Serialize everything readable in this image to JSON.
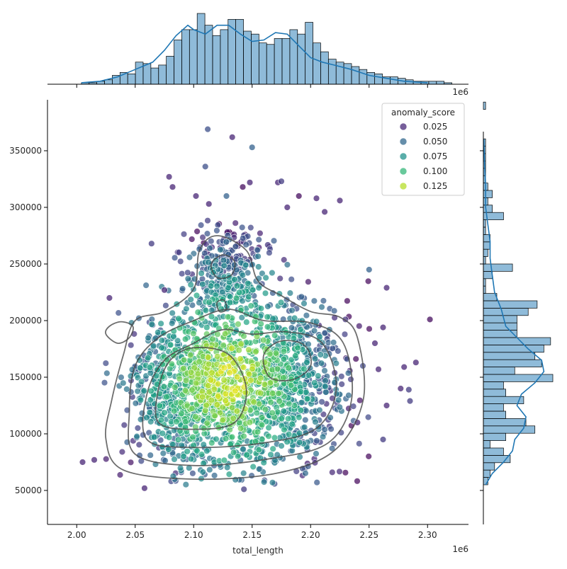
{
  "chart_data": {
    "type": "scatter",
    "title": "",
    "xlabel": "total_length",
    "ylabel": "",
    "x_offset_label": "1e6",
    "top_offset_label": "1e6",
    "xlim": [
      1.975,
      2.335
    ],
    "ylim": [
      20000,
      395000
    ],
    "x_ticks": [
      2.0,
      2.05,
      2.1,
      2.15,
      2.2,
      2.25,
      2.3
    ],
    "x_tick_labels": [
      "2.00",
      "2.05",
      "2.10",
      "2.15",
      "2.20",
      "2.25",
      "2.30"
    ],
    "y_ticks": [
      50000,
      100000,
      150000,
      200000,
      250000,
      300000,
      350000
    ],
    "y_tick_labels": [
      "50000",
      "100000",
      "150000",
      "200000",
      "250000",
      "300000",
      "350000"
    ],
    "grid": false,
    "legend": {
      "title": "anomaly_score",
      "placement": "top-right",
      "entries": [
        {
          "label": "0.025",
          "color": "#482878"
        },
        {
          "label": "0.050",
          "color": "#31688e"
        },
        {
          "label": "0.075",
          "color": "#21918c"
        },
        {
          "label": "0.100",
          "color": "#35b779"
        },
        {
          "label": "0.125",
          "color": "#b5de2b"
        }
      ]
    },
    "marginal_x": {
      "type": "histogram_with_kde",
      "color": "#1f77b4",
      "bin_start": 2.004,
      "bin_width": 0.0066,
      "counts": [
        1,
        1,
        2,
        3,
        6,
        8,
        7,
        15,
        14,
        11,
        13,
        19,
        30,
        37,
        37,
        48,
        40,
        33,
        37,
        44,
        44,
        36,
        34,
        28,
        27,
        31,
        31,
        37,
        34,
        42,
        28,
        22,
        17,
        15,
        14,
        12,
        10,
        8,
        7,
        5,
        5,
        4,
        3,
        2,
        2,
        2,
        2,
        1
      ],
      "kde_x": [
        2.004,
        2.02,
        2.035,
        2.05,
        2.065,
        2.075,
        2.085,
        2.095,
        2.1,
        2.11,
        2.12,
        2.13,
        2.14,
        2.15,
        2.16,
        2.17,
        2.18,
        2.19,
        2.2,
        2.21,
        2.22,
        2.235,
        2.25,
        2.265,
        2.28,
        2.3
      ],
      "kde_y": [
        1,
        2,
        5,
        10,
        15,
        23,
        33,
        40,
        37,
        34,
        40,
        40,
        34,
        29,
        30,
        35,
        34,
        26,
        18,
        15,
        13,
        10,
        6,
        4,
        2,
        1
      ]
    },
    "marginal_y": {
      "type": "histogram_with_kde",
      "color": "#1f77b4",
      "bin_start": 55000,
      "bin_width": 6500,
      "counts": [
        2,
        3,
        5,
        12,
        9,
        3,
        10,
        23,
        19,
        10,
        9,
        18,
        10,
        9,
        31,
        14,
        26,
        23,
        27,
        30,
        15,
        15,
        15,
        20,
        24,
        6,
        1,
        1,
        4,
        13,
        1,
        2,
        3,
        3,
        1,
        1,
        9,
        4,
        2,
        4,
        2,
        1,
        1,
        1,
        1,
        1,
        1,
        0,
        0,
        0,
        0,
        1,
        0
      ],
      "kde_y": [
        55000,
        65000,
        75000,
        85000,
        95000,
        105000,
        115000,
        125000,
        135000,
        145000,
        155000,
        165000,
        175000,
        185000,
        195000,
        210000,
        225000,
        240000,
        255000,
        270000,
        285000,
        300000,
        320000,
        340000,
        360000
      ],
      "kde_x": [
        1,
        4,
        9,
        13,
        14,
        18,
        19,
        15,
        17,
        23,
        27,
        26,
        20,
        15,
        10,
        8,
        5,
        4,
        3,
        3,
        2,
        1,
        1,
        0.5,
        0.2
      ]
    },
    "density_contours": {
      "color": "#4a4a4a",
      "levels": [
        [
          [
            2.04,
            68000
          ],
          [
            2.1,
            60000
          ],
          [
            2.17,
            65000
          ],
          [
            2.22,
            85000
          ],
          [
            2.245,
            130000
          ],
          [
            2.24,
            185000
          ],
          [
            2.225,
            203000
          ],
          [
            2.2,
            208000
          ],
          [
            2.175,
            222000
          ],
          [
            2.155,
            235000
          ],
          [
            2.145,
            262000
          ],
          [
            2.12,
            275000
          ],
          [
            2.105,
            262000
          ],
          [
            2.1,
            228000
          ],
          [
            2.075,
            208000
          ],
          [
            2.05,
            200000
          ],
          [
            2.04,
            170000
          ],
          [
            2.03,
            130000
          ],
          [
            2.025,
            95000
          ]
        ],
        [
          [
            2.035,
            180000
          ],
          [
            2.045,
            185000
          ],
          [
            2.048,
            195000
          ],
          [
            2.038,
            199000
          ],
          [
            2.028,
            195000
          ],
          [
            2.025,
            188000
          ]
        ],
        [
          [
            2.05,
            82000
          ],
          [
            2.1,
            72000
          ],
          [
            2.165,
            78000
          ],
          [
            2.215,
            92000
          ],
          [
            2.235,
            130000
          ],
          [
            2.228,
            180000
          ],
          [
            2.2,
            198000
          ],
          [
            2.16,
            200000
          ],
          [
            2.13,
            210000
          ],
          [
            2.1,
            200000
          ],
          [
            2.07,
            185000
          ],
          [
            2.05,
            160000
          ],
          [
            2.045,
            120000
          ]
        ],
        [
          [
            2.06,
            95000
          ],
          [
            2.1,
            88000
          ],
          [
            2.16,
            92000
          ],
          [
            2.205,
            105000
          ],
          [
            2.222,
            140000
          ],
          [
            2.21,
            180000
          ],
          [
            2.18,
            190000
          ],
          [
            2.15,
            188000
          ],
          [
            2.125,
            192000
          ],
          [
            2.1,
            180000
          ],
          [
            2.075,
            165000
          ],
          [
            2.06,
            135000
          ]
        ],
        [
          [
            2.07,
            110000
          ],
          [
            2.1,
            104000
          ],
          [
            2.135,
            110000
          ],
          [
            2.145,
            140000
          ],
          [
            2.13,
            170000
          ],
          [
            2.1,
            176000
          ],
          [
            2.08,
            165000
          ],
          [
            2.07,
            140000
          ]
        ],
        [
          [
            2.165,
            150000
          ],
          [
            2.185,
            148000
          ],
          [
            2.2,
            160000
          ],
          [
            2.195,
            178000
          ],
          [
            2.175,
            182000
          ],
          [
            2.16,
            170000
          ]
        ],
        [
          [
            2.12,
            238000
          ],
          [
            2.132,
            240000
          ],
          [
            2.135,
            252000
          ],
          [
            2.125,
            258000
          ],
          [
            2.115,
            250000
          ]
        ],
        [
          [
            2.122,
            208000
          ],
          [
            2.128,
            210000
          ],
          [
            2.126,
            218000
          ],
          [
            2.12,
            216000
          ]
        ]
      ]
    },
    "outliers": [
      {
        "x": 2.133,
        "y": 362000,
        "score": 0.02
      },
      {
        "x": 2.112,
        "y": 369000,
        "score": 0.04
      },
      {
        "x": 2.15,
        "y": 353000,
        "score": 0.05
      },
      {
        "x": 2.11,
        "y": 336000,
        "score": 0.04
      },
      {
        "x": 2.079,
        "y": 327000,
        "score": 0.02
      },
      {
        "x": 2.148,
        "y": 322000,
        "score": 0.02
      },
      {
        "x": 2.172,
        "y": 322000,
        "score": 0.02
      },
      {
        "x": 2.175,
        "y": 323000,
        "score": 0.03
      },
      {
        "x": 2.082,
        "y": 318000,
        "score": 0.02
      },
      {
        "x": 2.142,
        "y": 318000,
        "score": 0.01
      },
      {
        "x": 2.128,
        "y": 310000,
        "score": 0.05
      },
      {
        "x": 2.102,
        "y": 310000,
        "score": 0.02
      },
      {
        "x": 2.19,
        "y": 310000,
        "score": 0.01
      },
      {
        "x": 2.113,
        "y": 303000,
        "score": 0.02
      },
      {
        "x": 2.18,
        "y": 300000,
        "score": 0.02
      },
      {
        "x": 2.205,
        "y": 308000,
        "score": 0.02
      },
      {
        "x": 2.225,
        "y": 306000,
        "score": 0.02
      },
      {
        "x": 2.212,
        "y": 296000,
        "score": 0.02
      },
      {
        "x": 2.028,
        "y": 220000,
        "score": 0.02
      },
      {
        "x": 2.075,
        "y": 227000,
        "score": 0.02
      },
      {
        "x": 2.064,
        "y": 268000,
        "score": 0.03
      },
      {
        "x": 2.265,
        "y": 229000,
        "score": 0.02
      },
      {
        "x": 2.005,
        "y": 75000,
        "score": 0.02
      },
      {
        "x": 2.015,
        "y": 77000,
        "score": 0.02
      },
      {
        "x": 2.058,
        "y": 52000,
        "score": 0.02
      },
      {
        "x": 2.143,
        "y": 51000,
        "score": 0.03
      },
      {
        "x": 2.302,
        "y": 201000,
        "score": 0.01
      },
      {
        "x": 2.29,
        "y": 163000,
        "score": 0.02
      },
      {
        "x": 2.28,
        "y": 159000,
        "score": 0.02
      },
      {
        "x": 2.284,
        "y": 139000,
        "score": 0.03
      },
      {
        "x": 2.277,
        "y": 140000,
        "score": 0.02
      },
      {
        "x": 2.285,
        "y": 129000,
        "score": 0.03
      },
      {
        "x": 2.262,
        "y": 95000,
        "score": 0.03
      },
      {
        "x": 2.265,
        "y": 125000,
        "score": 0.02
      },
      {
        "x": 2.24,
        "y": 110000,
        "score": 0.02
      },
      {
        "x": 2.258,
        "y": 157000,
        "score": 0.02
      },
      {
        "x": 2.255,
        "y": 180000,
        "score": 0.02
      },
      {
        "x": 2.262,
        "y": 194000,
        "score": 0.02
      },
      {
        "x": 2.25,
        "y": 245000,
        "score": 0.05
      }
    ],
    "point_cloud": {
      "count": 2300,
      "note_visible": false
    }
  }
}
